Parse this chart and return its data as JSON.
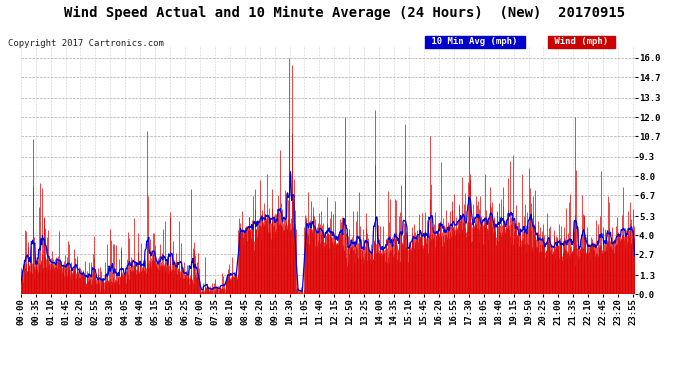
{
  "title": "Wind Speed Actual and 10 Minute Average (24 Hours)  (New)  20170915",
  "copyright": "Copyright 2017 Cartronics.com",
  "legend_avg_label": "10 Min Avg (mph)",
  "legend_wind_label": "Wind (mph)",
  "yticks": [
    0.0,
    1.3,
    2.7,
    4.0,
    5.3,
    6.7,
    8.0,
    9.3,
    10.7,
    12.0,
    13.3,
    14.7,
    16.0
  ],
  "ylim": [
    0.0,
    16.8
  ],
  "bg_color": "#ffffff",
  "grid_color": "#aaaaaa",
  "title_fontsize": 10,
  "copyright_fontsize": 6.5,
  "tick_fontsize": 6.5,
  "bar_color": "#dd0000",
  "line_color": "#0000dd",
  "avg_bg_color": "#0000cc",
  "wind_bg_color": "#cc0000",
  "xtick_interval": 35,
  "time_labels": [
    "00:00",
    "00:35",
    "01:10",
    "01:45",
    "02:20",
    "02:55",
    "03:30",
    "04:05",
    "04:40",
    "05:15",
    "05:50",
    "06:25",
    "07:00",
    "07:35",
    "08:10",
    "08:45",
    "09:20",
    "09:55",
    "10:30",
    "11:05",
    "11:40",
    "12:15",
    "12:50",
    "13:25",
    "14:00",
    "14:35",
    "15:10",
    "15:45",
    "16:20",
    "16:55",
    "17:30",
    "18:05",
    "18:40",
    "19:15",
    "19:50",
    "20:25",
    "21:00",
    "21:35",
    "22:10",
    "22:45",
    "23:20",
    "23:55"
  ]
}
